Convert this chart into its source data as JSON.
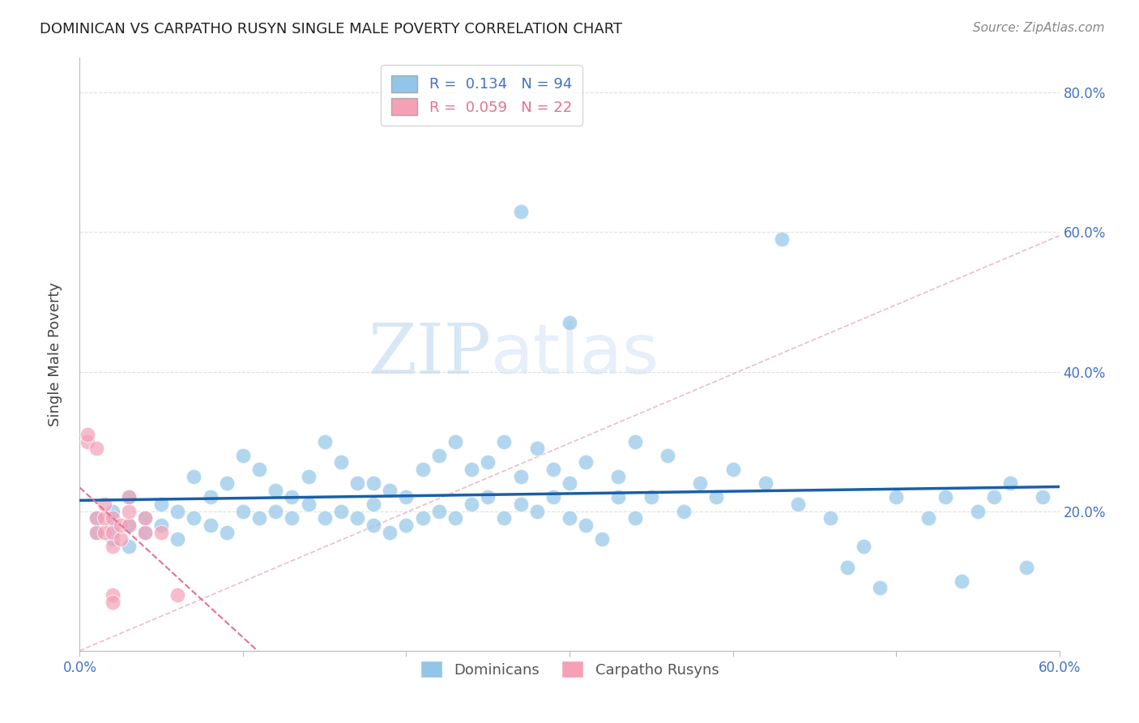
{
  "title": "DOMINICAN VS CARPATHO RUSYN SINGLE MALE POVERTY CORRELATION CHART",
  "source": "Source: ZipAtlas.com",
  "ylabel": "Single Male Poverty",
  "xlim": [
    0.0,
    0.6
  ],
  "ylim": [
    0.0,
    0.85
  ],
  "R_dominican": 0.134,
  "N_dominican": 94,
  "R_carpatho": 0.059,
  "N_carpatho": 22,
  "dominican_color": "#92C5E8",
  "carpatho_color": "#F4A0B5",
  "dominican_line_color": "#1A5FA8",
  "carpatho_line_color": "#E87090",
  "watermark_zip": "ZIP",
  "watermark_atlas": "atlas",
  "dominican_x": [
    0.01,
    0.01,
    0.02,
    0.02,
    0.02,
    0.03,
    0.03,
    0.03,
    0.04,
    0.04,
    0.05,
    0.05,
    0.06,
    0.06,
    0.07,
    0.07,
    0.08,
    0.08,
    0.09,
    0.09,
    0.1,
    0.1,
    0.11,
    0.11,
    0.12,
    0.12,
    0.13,
    0.13,
    0.14,
    0.14,
    0.15,
    0.15,
    0.16,
    0.16,
    0.17,
    0.17,
    0.18,
    0.18,
    0.18,
    0.19,
    0.19,
    0.2,
    0.2,
    0.21,
    0.21,
    0.22,
    0.22,
    0.23,
    0.23,
    0.24,
    0.24,
    0.25,
    0.25,
    0.26,
    0.26,
    0.27,
    0.27,
    0.28,
    0.28,
    0.29,
    0.29,
    0.3,
    0.3,
    0.31,
    0.31,
    0.32,
    0.33,
    0.33,
    0.34,
    0.34,
    0.35,
    0.36,
    0.37,
    0.38,
    0.39,
    0.4,
    0.42,
    0.44,
    0.46,
    0.47,
    0.48,
    0.5,
    0.52,
    0.53,
    0.54,
    0.55,
    0.56,
    0.57,
    0.58,
    0.59,
    0.27,
    0.3,
    0.43,
    0.49
  ],
  "dominican_y": [
    0.17,
    0.19,
    0.16,
    0.18,
    0.2,
    0.15,
    0.18,
    0.22,
    0.17,
    0.19,
    0.18,
    0.21,
    0.16,
    0.2,
    0.19,
    0.25,
    0.18,
    0.22,
    0.17,
    0.24,
    0.2,
    0.28,
    0.19,
    0.26,
    0.2,
    0.23,
    0.19,
    0.22,
    0.21,
    0.25,
    0.19,
    0.3,
    0.2,
    0.27,
    0.19,
    0.24,
    0.18,
    0.21,
    0.24,
    0.17,
    0.23,
    0.18,
    0.22,
    0.19,
    0.26,
    0.2,
    0.28,
    0.19,
    0.3,
    0.21,
    0.26,
    0.22,
    0.27,
    0.19,
    0.3,
    0.21,
    0.25,
    0.2,
    0.29,
    0.22,
    0.26,
    0.19,
    0.24,
    0.18,
    0.27,
    0.16,
    0.22,
    0.25,
    0.19,
    0.3,
    0.22,
    0.28,
    0.2,
    0.24,
    0.22,
    0.26,
    0.24,
    0.21,
    0.19,
    0.12,
    0.15,
    0.22,
    0.19,
    0.22,
    0.1,
    0.2,
    0.22,
    0.24,
    0.12,
    0.22,
    0.63,
    0.47,
    0.59,
    0.09
  ],
  "carpatho_x": [
    0.005,
    0.005,
    0.01,
    0.01,
    0.01,
    0.015,
    0.015,
    0.015,
    0.02,
    0.02,
    0.02,
    0.02,
    0.02,
    0.025,
    0.025,
    0.03,
    0.03,
    0.03,
    0.04,
    0.04,
    0.05,
    0.06
  ],
  "carpatho_y": [
    0.3,
    0.31,
    0.17,
    0.19,
    0.29,
    0.17,
    0.19,
    0.21,
    0.15,
    0.17,
    0.19,
    0.08,
    0.07,
    0.16,
    0.18,
    0.18,
    0.2,
    0.22,
    0.17,
    0.19,
    0.17,
    0.08
  ]
}
